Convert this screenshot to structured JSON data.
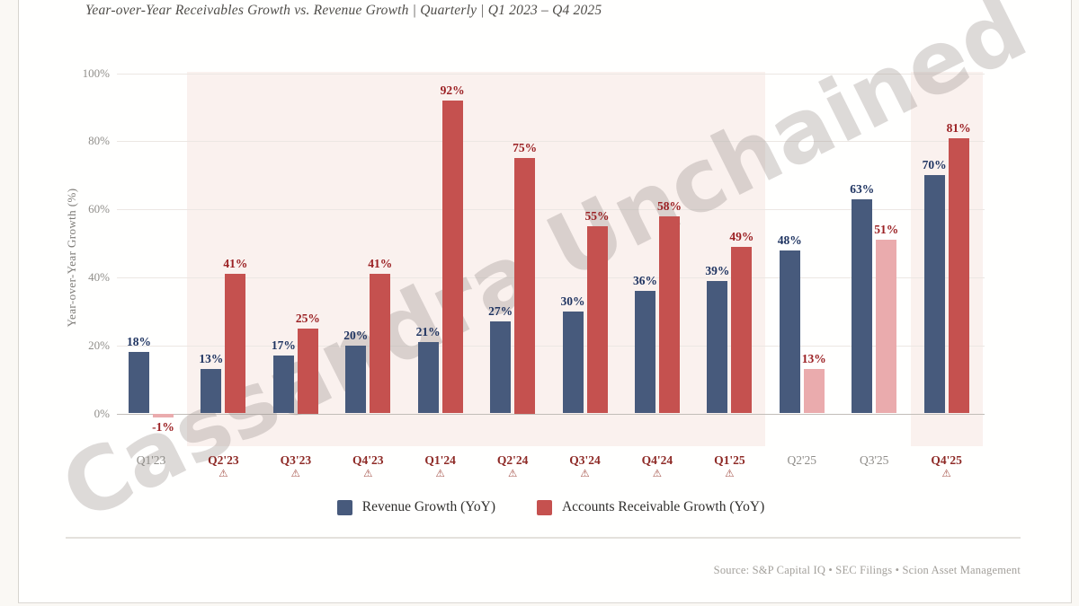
{
  "title": "Year-over-Year Receivables Growth vs. Revenue Growth  |  Quarterly  |  Q1 2023 – Q4 2025",
  "watermark": "Cassandra Unchained",
  "source": "Source: S&P Capital IQ • SEC Filings • Scion Asset Management",
  "legend": [
    {
      "label": "Revenue Growth (YoY)",
      "color": "#475a7c"
    },
    {
      "label": "Accounts Receivable Growth (YoY)",
      "color": "#c5514f"
    }
  ],
  "colors": {
    "revenue_bar": "#475a7c",
    "receivable_bar": "#c5514f",
    "receivable_bar_muted": "#eaabad",
    "revenue_label": "#1f3461",
    "receivable_label": "#9b2023",
    "warning_quarter_label": "#8e2a26",
    "normal_quarter_label": "#8f8d89",
    "warning_icon": "#a34f45",
    "band": "#faf1ee",
    "gridline": "#ece7e3",
    "zero_line": "#c2bdb8"
  },
  "chart_data": {
    "type": "bar",
    "title": "Year-over-Year Receivables Growth vs. Revenue Growth | Quarterly | Q1 2023 – Q4 2025",
    "ylabel": "Year-over-Year Growth (%)",
    "ylim": [
      0,
      100
    ],
    "ytick_labels": [
      "0%",
      "20%",
      "40%",
      "60%",
      "80%",
      "100%"
    ],
    "grid": true,
    "legend_position": "bottom",
    "categories": [
      "Q1'23",
      "Q2'23",
      "Q3'23",
      "Q4'23",
      "Q1'24",
      "Q2'24",
      "Q3'24",
      "Q4'24",
      "Q1'25",
      "Q2'25",
      "Q3'25",
      "Q4'25"
    ],
    "series": [
      {
        "name": "Revenue Growth (YoY)",
        "values": [
          18,
          13,
          17,
          20,
          21,
          27,
          30,
          36,
          39,
          48,
          63,
          70
        ]
      },
      {
        "name": "Accounts Receivable Growth (YoY)",
        "values": [
          -1,
          41,
          25,
          41,
          92,
          75,
          55,
          58,
          49,
          13,
          51,
          81
        ]
      }
    ],
    "quarters": [
      {
        "label": "Q1'23",
        "revenue": 18,
        "receivables": -1,
        "warning": false,
        "receivables_muted": true
      },
      {
        "label": "Q2'23",
        "revenue": 13,
        "receivables": 41,
        "warning": true,
        "receivables_muted": false
      },
      {
        "label": "Q3'23",
        "revenue": 17,
        "receivables": 25,
        "warning": true,
        "receivables_muted": false
      },
      {
        "label": "Q4'23",
        "revenue": 20,
        "receivables": 41,
        "warning": true,
        "receivables_muted": false
      },
      {
        "label": "Q1'24",
        "revenue": 21,
        "receivables": 92,
        "warning": true,
        "receivables_muted": false
      },
      {
        "label": "Q2'24",
        "revenue": 27,
        "receivables": 75,
        "warning": true,
        "receivables_muted": false
      },
      {
        "label": "Q3'24",
        "revenue": 30,
        "receivables": 55,
        "warning": true,
        "receivables_muted": false
      },
      {
        "label": "Q4'24",
        "revenue": 36,
        "receivables": 58,
        "warning": true,
        "receivables_muted": false
      },
      {
        "label": "Q1'25",
        "revenue": 39,
        "receivables": 49,
        "warning": true,
        "receivables_muted": false
      },
      {
        "label": "Q2'25",
        "revenue": 48,
        "receivables": 13,
        "warning": false,
        "receivables_muted": true
      },
      {
        "label": "Q3'25",
        "revenue": 63,
        "receivables": 51,
        "warning": false,
        "receivables_muted": true
      },
      {
        "label": "Q4'25",
        "revenue": 70,
        "receivables": 81,
        "warning": true,
        "receivables_muted": false
      }
    ],
    "warning_icon_glyph": "⚠",
    "highlight_bands": [
      {
        "from": "Q2'23",
        "to": "Q1'25"
      },
      {
        "from": "Q4'25",
        "to": "Q4'25"
      }
    ]
  }
}
